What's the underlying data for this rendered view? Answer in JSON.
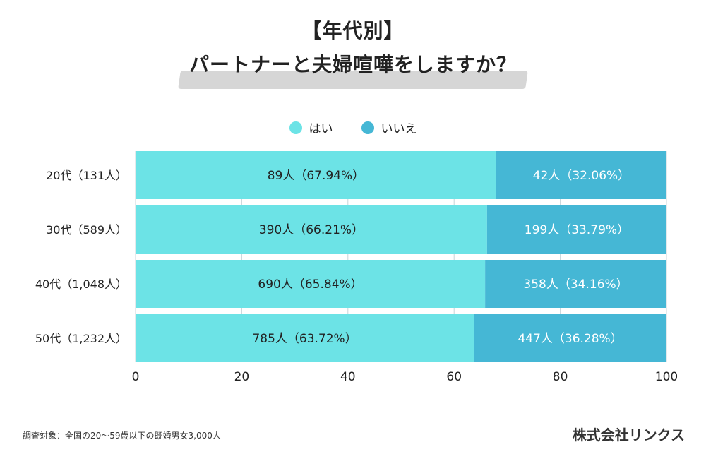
{
  "title": {
    "line1": "【年代別】",
    "line2": "パートナーと夫婦喧嘩をしますか？"
  },
  "footnote": "調査対象：全国の20〜59歳以下の既婚男女3,000人",
  "company": "株式会社リンクス",
  "colors": {
    "yes": "#6ce3e6",
    "no": "#45b7d5",
    "text_dark": "#222222",
    "text_light": "#ffffff",
    "grid": "#c8d4d8"
  },
  "chart_data": {
    "type": "bar",
    "orientation": "horizontal",
    "stacked": true,
    "categories": [
      "20代（131人）",
      "30代（589人）",
      "40代（1,048人）",
      "50代（1,232人）"
    ],
    "series": [
      {
        "name": "はい",
        "values": [
          67.94,
          66.21,
          65.84,
          63.72
        ],
        "labels": [
          "89人（67.94%）",
          "390人（66.21%）",
          "690人（65.84%）",
          "785人（63.72%）"
        ]
      },
      {
        "name": "いいえ",
        "values": [
          32.06,
          33.79,
          34.16,
          36.28
        ],
        "labels": [
          "42人（32.06%）",
          "199人（33.79%）",
          "358人（34.16%）",
          "447人（36.28%）"
        ]
      }
    ],
    "xlim": [
      0,
      100
    ],
    "xticks": [
      "0",
      "20",
      "40",
      "60",
      "80",
      "100"
    ],
    "legend_position": "top-center",
    "grid": true
  }
}
